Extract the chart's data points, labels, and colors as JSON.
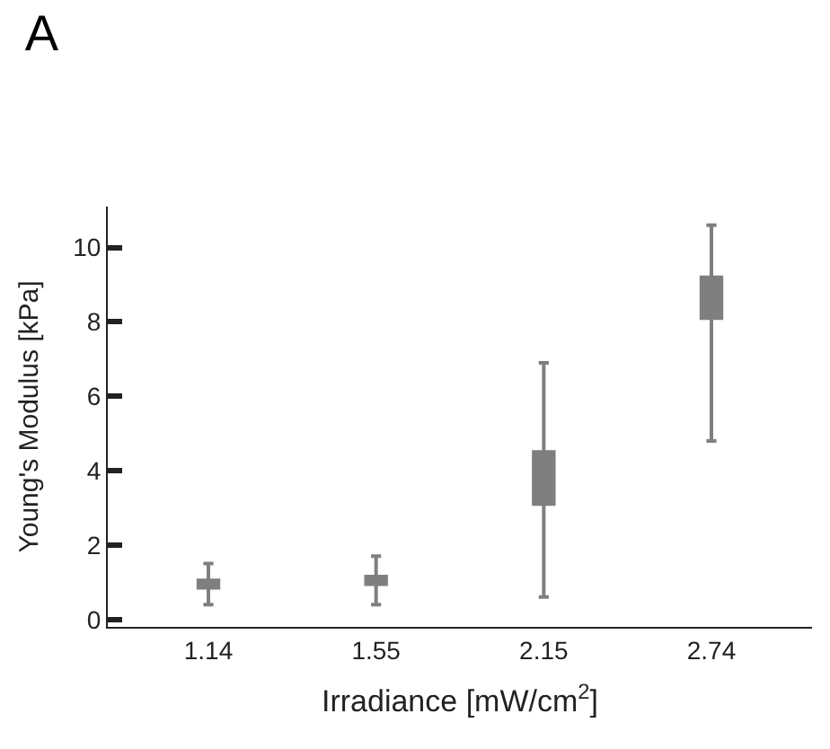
{
  "chart_data": {
    "type": "box",
    "title": "A",
    "xlabel": "Irradiance [mW/cm$^{2}$]",
    "ylabel": "Young's Modulus [kPa]",
    "categories": [
      "1.14",
      "1.55",
      "2.15",
      "2.74"
    ],
    "color": "#7f7f7f",
    "boxes": [
      {
        "low": 0.4,
        "q1": 0.85,
        "median": 0.94,
        "q3": 1.05,
        "high": 1.5
      },
      {
        "low": 0.4,
        "q1": 0.95,
        "median": 1.04,
        "q3": 1.15,
        "high": 1.7
      },
      {
        "low": 0.6,
        "q1": 3.1,
        "median": 3.9,
        "q3": 4.5,
        "high": 6.9
      },
      {
        "low": 4.8,
        "q1": 8.1,
        "median": 8.7,
        "q3": 9.2,
        "high": 10.6
      }
    ],
    "ylim": [
      -0.2,
      11.1
    ],
    "yticks": [
      0,
      2,
      4,
      6,
      8,
      10
    ]
  }
}
